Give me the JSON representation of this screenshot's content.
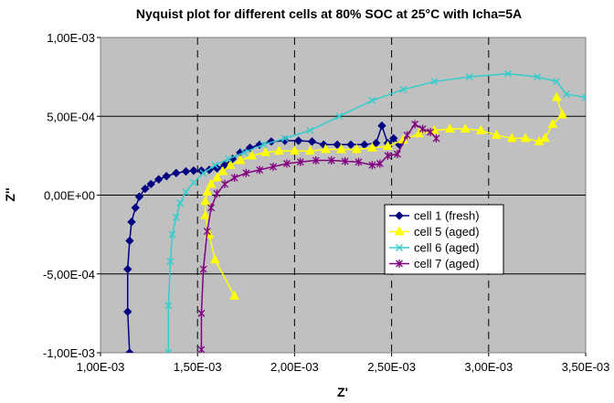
{
  "chart_data": {
    "type": "scatter",
    "title": "Nyquist plot for different cells at 80% SOC at 25°C with Icha=5A",
    "xlabel": "Z'",
    "ylabel": "Z''",
    "xlim": [
      0.001,
      0.0035
    ],
    "ylim": [
      -0.001,
      0.001
    ],
    "x_ticks": [
      0.001,
      0.0015,
      0.002,
      0.0025,
      0.003,
      0.0035
    ],
    "y_ticks": [
      -0.001,
      -0.0005,
      0.0,
      0.0005,
      0.001
    ],
    "x_tick_labels": [
      "1,00E-03",
      "1,50E-03",
      "2,00E-03",
      "2,50E-03",
      "3,00E-03",
      "3,50E-03"
    ],
    "y_tick_labels": [
      "-1,00E-03",
      "-5,00E-04",
      "0,00E+00",
      "5,00E-04",
      "1,00E-03"
    ],
    "x_gridlines": "dashed",
    "y_gridlines": "solid",
    "plot_background": "#c0c0c0",
    "legend_position": "lower-right inside plot",
    "series": [
      {
        "name": "cell 1  (fresh)",
        "color": "#000080",
        "marker": "diamond",
        "x": [
          0.00115,
          0.00114,
          0.00114,
          0.00115,
          0.00116,
          0.00118,
          0.0012,
          0.00123,
          0.00126,
          0.0013,
          0.00134,
          0.00139,
          0.00144,
          0.00148,
          0.00152,
          0.00156,
          0.0016,
          0.00164,
          0.00168,
          0.00172,
          0.00177,
          0.00182,
          0.00188,
          0.00195,
          0.00202,
          0.00209,
          0.00215,
          0.00222,
          0.00229,
          0.00236,
          0.00242,
          0.00245,
          0.00248,
          0.00251,
          0.00254
        ],
        "y": [
          -0.001,
          -0.00074,
          -0.00047,
          -0.00029,
          -0.00017,
          -8e-05,
          -1e-05,
          4e-05,
          7e-05,
          0.0001,
          0.00012,
          0.00014,
          0.00015,
          0.000155,
          0.000155,
          0.00016,
          0.00017,
          0.00019,
          0.00023,
          0.00027,
          0.0003,
          0.00032,
          0.00034,
          0.000345,
          0.000345,
          0.00034,
          0.00032,
          0.00032,
          0.00032,
          0.00032,
          0.00033,
          0.00044,
          0.00033,
          0.00036,
          0.00032
        ]
      },
      {
        "name": "cell 5 (aged)",
        "color": "#ffff00",
        "marker": "triangle",
        "x": [
          0.00169,
          0.00159,
          0.00156,
          0.00154,
          0.00154,
          0.00155,
          0.00157,
          0.0016,
          0.00163,
          0.00167,
          0.00172,
          0.00178,
          0.00185,
          0.00192,
          0.002,
          0.00208,
          0.00216,
          0.00224,
          0.00232,
          0.0024,
          0.00248,
          0.00256,
          0.00264,
          0.00272,
          0.0028,
          0.00288,
          0.00296,
          0.00304,
          0.00312,
          0.00319,
          0.00326,
          0.00329,
          0.00333,
          0.00338,
          0.00335
        ],
        "y": [
          -0.00064,
          -0.00041,
          -0.00025,
          -0.00013,
          -4e-05,
          2e-05,
          7e-05,
          0.00011,
          0.00015,
          0.00019,
          0.00022,
          0.00025,
          0.00027,
          0.00028,
          0.00028,
          0.00028,
          0.00029,
          0.00029,
          0.00029,
          0.0003,
          0.00031,
          0.00035,
          0.00039,
          0.00041,
          0.00042,
          0.00042,
          0.00041,
          0.00038,
          0.00036,
          0.00036,
          0.00034,
          0.00036,
          0.00045,
          0.00051,
          0.00062
        ]
      },
      {
        "name": "cell 6 (aged)",
        "color": "#33cccc",
        "marker": "x",
        "x": [
          0.00135,
          0.00135,
          0.00136,
          0.00137,
          0.00139,
          0.00141,
          0.00144,
          0.00148,
          0.00153,
          0.00159,
          0.00166,
          0.00174,
          0.00184,
          0.00195,
          0.00208,
          0.00223,
          0.0024,
          0.00256,
          0.00272,
          0.0029,
          0.0031,
          0.00325,
          0.00335,
          0.0034,
          0.0035
        ],
        "y": [
          -0.001,
          -0.0007,
          -0.00042,
          -0.00025,
          -0.00014,
          -5e-05,
          2e-05,
          8e-05,
          0.00014,
          0.00019,
          0.00023,
          0.00027,
          0.00032,
          0.00036,
          0.00041,
          0.0005,
          0.0006,
          0.00067,
          0.00072,
          0.00075,
          0.00077,
          0.00075,
          0.00072,
          0.00064,
          0.00062
        ]
      },
      {
        "name": "cell 7 (aged)",
        "color": "#800080",
        "marker": "asterisk",
        "x": [
          0.00152,
          0.00152,
          0.00153,
          0.00155,
          0.00157,
          0.0016,
          0.00164,
          0.00169,
          0.00175,
          0.00182,
          0.00189,
          0.00196,
          0.00203,
          0.00211,
          0.00219,
          0.00226,
          0.00233,
          0.0024,
          0.00244,
          0.00248,
          0.00253,
          0.00258,
          0.00262,
          0.00266,
          0.0027,
          0.00273
        ],
        "y": [
          -0.00098,
          -0.00075,
          -0.00047,
          -0.00023,
          -8e-05,
          1e-05,
          7e-05,
          0.00011,
          0.00014,
          0.00016,
          0.00018,
          0.0002,
          0.00021,
          0.00022,
          0.00022,
          0.000215,
          0.00021,
          0.00019,
          0.0002,
          0.00025,
          0.00026,
          0.00038,
          0.00045,
          0.00042,
          0.0004,
          0.00036
        ]
      }
    ]
  }
}
